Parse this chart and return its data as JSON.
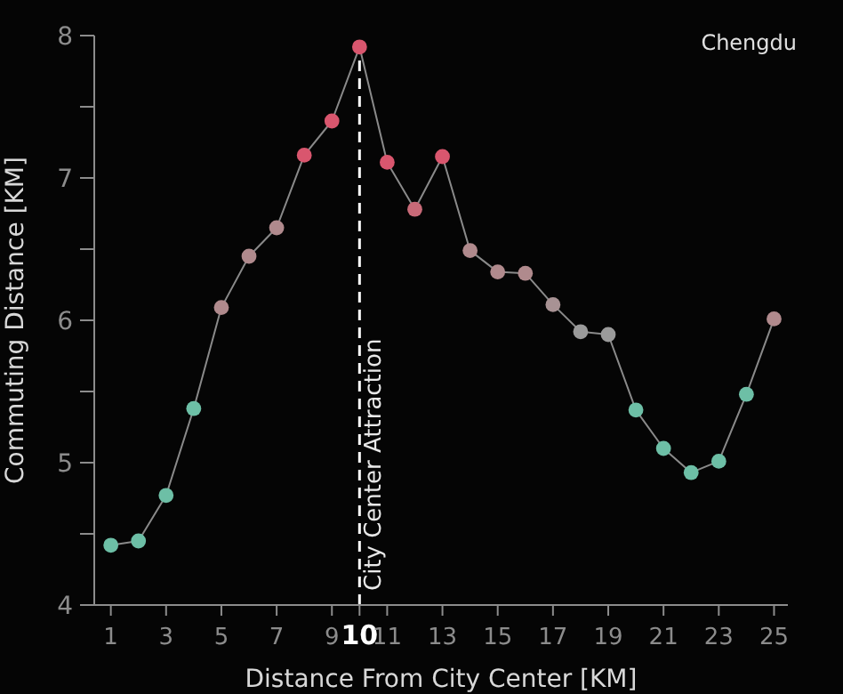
{
  "chart_data": {
    "type": "line",
    "xlabel": "Distance From City Center [KM]",
    "ylabel": "Commuting Distance [KM]",
    "annotations": [
      "Chengdu"
    ],
    "x": [
      1,
      2,
      3,
      4,
      5,
      6,
      7,
      8,
      9,
      10,
      11,
      12,
      13,
      14,
      15,
      16,
      17,
      18,
      19,
      20,
      21,
      22,
      23,
      24,
      25
    ],
    "series": [
      {
        "color": "#8a8a8a",
        "values": [
          4.42,
          4.45,
          4.77,
          5.38,
          6.09,
          6.45,
          6.65,
          7.16,
          7.4,
          7.92,
          7.11,
          6.78,
          7.15,
          6.49,
          6.34,
          6.33,
          6.11,
          5.92,
          5.9,
          5.37,
          5.1,
          4.93,
          5.01,
          5.48,
          6.01
        ],
        "colors": [
          "#6dbfa6",
          "#6dbfa6",
          "#6dbfa6",
          "#6dbfa6",
          "#b08a8d",
          "#b08a8d",
          "#b08a8d",
          "#d9566e",
          "#d9566e",
          "#d9566e",
          "#d9566e",
          "#c86a78",
          "#d9566e",
          "#b08a8d",
          "#b08a8d",
          "#b08a8d",
          "#a89294",
          "#9a9a9a",
          "#9a9a9a",
          "#6dbfa6",
          "#6dbfa6",
          "#6dbfa6",
          "#6dbfa6",
          "#6dbfa6",
          "#b08a8d"
        ]
      }
    ],
    "xlim": [
      0.4,
      25.5
    ],
    "xticks": [
      1,
      3,
      5,
      7,
      9,
      10,
      11,
      13,
      15,
      17,
      19,
      21,
      23,
      25
    ],
    "ylim": [
      4,
      8
    ],
    "yticks": [
      4,
      {
        "value": 4.5,
        "label": null
      },
      5,
      {
        "value": 5.5,
        "label": null
      },
      6,
      {
        "value": 6.5,
        "label": null
      },
      7,
      {
        "value": 7.5,
        "label": null
      },
      8
    ],
    "ref_lines": [
      {
        "axis": "x",
        "value": 10,
        "label": "City Center Attraction",
        "color": "#ffffff",
        "line_style": "dashed"
      }
    ],
    "marker": "circle",
    "grid": false,
    "legend": false
  }
}
